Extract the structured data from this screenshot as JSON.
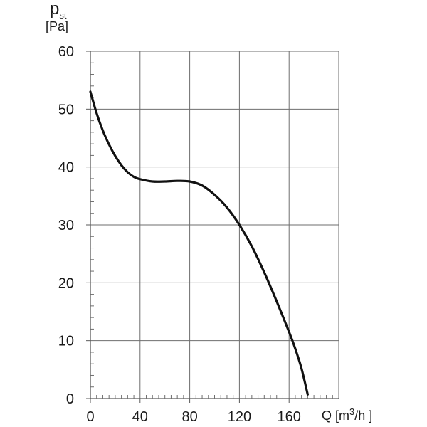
{
  "chart_data": {
    "type": "line",
    "xlabel": {
      "symbol": "Q",
      "unit_open": "[m",
      "unit_sup": "3",
      "unit_close": "/h ]"
    },
    "ylabel": {
      "symbol": "p",
      "symbol_sub": "st",
      "unit": "[Pa]"
    },
    "xlim": [
      0,
      200
    ],
    "ylim": [
      0,
      60
    ],
    "x_ticks": [
      0,
      40,
      80,
      120,
      160
    ],
    "x_tick_labels": [
      "0",
      "40",
      "80",
      "120",
      "160"
    ],
    "y_ticks": [
      0,
      10,
      20,
      30,
      40,
      50,
      60
    ],
    "y_tick_labels": [
      "0",
      "10",
      "20",
      "30",
      "40",
      "50",
      "60"
    ],
    "grid": true,
    "series": [
      {
        "color": "#111111",
        "x": [
          0,
          5,
          10,
          15,
          20,
          25,
          30,
          35,
          40,
          50,
          60,
          70,
          80,
          90,
          100,
          110,
          120,
          130,
          140,
          150,
          160,
          165,
          170,
          175
        ],
        "y": [
          53,
          49.3,
          46.3,
          43.9,
          41.9,
          40.3,
          39.1,
          38.3,
          37.9,
          37.5,
          37.5,
          37.6,
          37.5,
          36.8,
          35.2,
          33,
          30,
          26.3,
          21.8,
          16.8,
          11.5,
          8.6,
          5.2,
          0.7
        ]
      }
    ]
  }
}
